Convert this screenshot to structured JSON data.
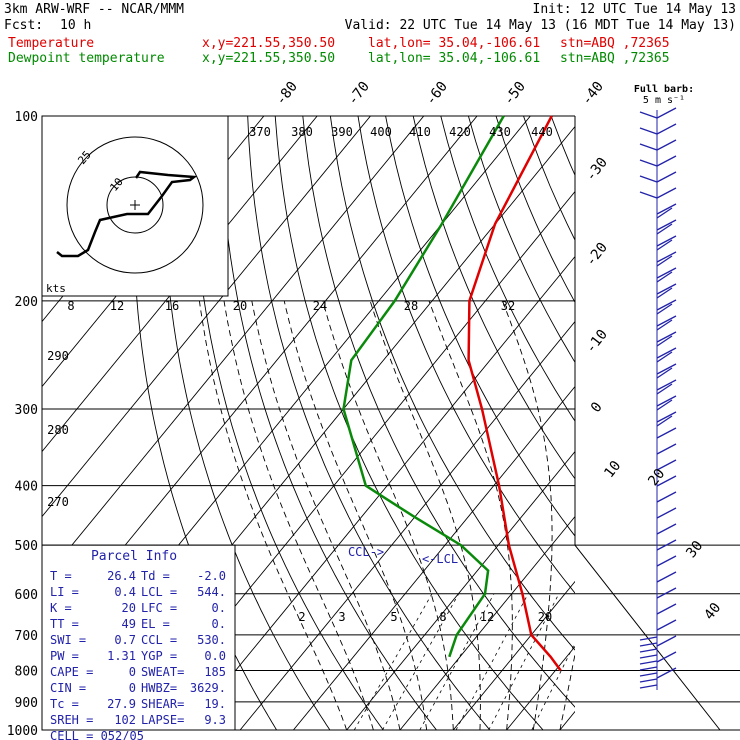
{
  "header": {
    "model": "3km ARW-WRF -- NCAR/MMM",
    "init": "Init: 12 UTC Tue 14 May 13",
    "fcst_label": "Fcst:",
    "fcst_value": "10 h",
    "valid": "Valid: 22 UTC Tue 14 May 13 (16 MDT Tue 14 May 13)",
    "temp_label": "Temperature",
    "dew_label": "Dewpoint temperature",
    "xy": "x,y=221.55,350.50",
    "latlon": "lat,lon= 35.04,-106.61",
    "stn": "stn=ABQ ,72365"
  },
  "chart_data": {
    "type": "skew-t",
    "pressure_ticks": [
      "100",
      "200",
      "300",
      "400",
      "500",
      "600",
      "700",
      "800",
      "900",
      "1000"
    ],
    "pressure_levels": [
      100,
      200,
      300,
      400,
      500,
      600,
      700,
      800,
      900,
      1000
    ],
    "isotherm_labels": [
      "-80",
      "-70",
      "-60",
      "-50",
      "-40",
      "-30",
      "-20",
      "-10",
      "0",
      "10",
      "20",
      "30",
      "40"
    ],
    "theta_labels": [
      "370",
      "380",
      "390",
      "400",
      "410",
      "420",
      "430",
      "440"
    ],
    "theta_labels_left": [
      "290",
      "280",
      "270"
    ],
    "mixing_ratio_labels": [
      "2",
      "3",
      "5",
      "8",
      "12",
      "20"
    ],
    "hodo_speed_labels": [
      "8",
      "12",
      "16",
      "20",
      "24",
      "28",
      "32"
    ],
    "hodo_unit": "kts",
    "hodo_ring_labels": [
      "10",
      "25"
    ],
    "barb_legend": "Full barb: 5 m s⁻¹",
    "ccl_label": "CCL->",
    "lcl_label": "<-LCL",
    "temperature": [
      {
        "p": 100,
        "t": -66
      },
      {
        "p": 150,
        "t": -60
      },
      {
        "p": 200,
        "t": -53
      },
      {
        "p": 250,
        "t": -44
      },
      {
        "p": 300,
        "t": -34
      },
      {
        "p": 400,
        "t": -19
      },
      {
        "p": 500,
        "t": -8
      },
      {
        "p": 600,
        "t": 2
      },
      {
        "p": 700,
        "t": 10
      },
      {
        "p": 760,
        "t": 17
      },
      {
        "p": 800,
        "t": 21
      }
    ],
    "dewpoint": [
      {
        "p": 100,
        "t": -75
      },
      {
        "p": 150,
        "t": -70
      },
      {
        "p": 200,
        "t": -67
      },
      {
        "p": 250,
        "t": -66
      },
      {
        "p": 300,
        "t": -60
      },
      {
        "p": 400,
        "t": -44
      },
      {
        "p": 450,
        "t": -30
      },
      {
        "p": 500,
        "t": -17
      },
      {
        "p": 550,
        "t": -8
      },
      {
        "p": 600,
        "t": -5
      },
      {
        "p": 700,
        "t": -4
      },
      {
        "p": 760,
        "t": -2
      }
    ]
  },
  "parcel": {
    "title": "Parcel Info",
    "left": [
      {
        "k": "T   =",
        "v": "26.4"
      },
      {
        "k": "LI  =",
        "v": "0.4"
      },
      {
        "k": "K   =",
        "v": "20"
      },
      {
        "k": "TT  =",
        "v": "49"
      },
      {
        "k": "SWI =",
        "v": "0.7"
      },
      {
        "k": "PW  =",
        "v": "1.31"
      },
      {
        "k": "CAPE =",
        "v": "0"
      },
      {
        "k": "CIN  =",
        "v": "0"
      },
      {
        "k": "Tc   =",
        "v": "27.9"
      },
      {
        "k": "SREH =",
        "v": "102"
      }
    ],
    "right": [
      {
        "k": "Td  =",
        "v": "-2.0"
      },
      {
        "k": "LCL =",
        "v": "544."
      },
      {
        "k": "LFC =",
        "v": "0."
      },
      {
        "k": "EL  =",
        "v": "0."
      },
      {
        "k": "CCL =",
        "v": "530."
      },
      {
        "k": "YGP =",
        "v": "0.0"
      },
      {
        "k": "SWEAT=",
        "v": "185"
      },
      {
        "k": "HWBZ=",
        "v": "3629."
      },
      {
        "k": "SHEAR=",
        "v": "19."
      },
      {
        "k": "LAPSE=",
        "v": "9.3"
      }
    ],
    "cell": "CELL = 052/05"
  },
  "colors": {
    "temperature": "#e00000",
    "dewpoint": "#0a8a0a",
    "barbs": "#2222aa",
    "grid": "#000000"
  }
}
